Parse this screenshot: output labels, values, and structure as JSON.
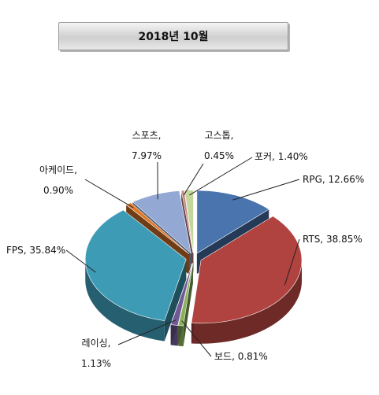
{
  "chart_data": {
    "type": "pie",
    "title": "2018년 10월",
    "style": "3d-exploded",
    "slices": [
      {
        "label": "RPG",
        "value": 12.66,
        "display": "12.66%",
        "color": "#4a74ad"
      },
      {
        "label": "RTS",
        "value": 38.85,
        "display": "38.85%",
        "color": "#b0433f"
      },
      {
        "label": "보드",
        "value": 0.81,
        "display": "0.81%",
        "color": "#8bb05a"
      },
      {
        "label": "레이싱",
        "value": 1.13,
        "display": "1.13%",
        "color": "#6f5a96"
      },
      {
        "label": "FPS",
        "value": 35.84,
        "display": "35.84%",
        "color": "#3e9bb5"
      },
      {
        "label": "아케이드",
        "value": 0.9,
        "display": "0.90%",
        "color": "#e0782a"
      },
      {
        "label": "스포츠",
        "value": 7.97,
        "display": "7.97%",
        "color": "#93a9d4"
      },
      {
        "label": "고스톱",
        "value": 0.45,
        "display": "0.45%",
        "color": "#c98785"
      },
      {
        "label": "포커",
        "value": 1.4,
        "display": "1.40%",
        "color": "#c3d79c"
      }
    ]
  }
}
